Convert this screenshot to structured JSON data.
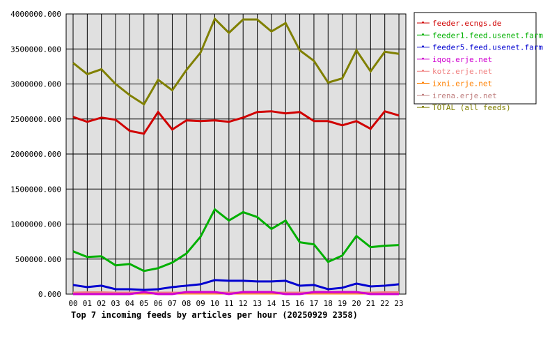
{
  "chart_data": {
    "type": "line",
    "title": "Top 7 incoming feeds by articles per hour (20250929 2358)",
    "categories": [
      "00",
      "01",
      "02",
      "03",
      "04",
      "05",
      "06",
      "07",
      "08",
      "09",
      "10",
      "11",
      "12",
      "13",
      "14",
      "15",
      "16",
      "17",
      "18",
      "19",
      "20",
      "21",
      "22",
      "23"
    ],
    "ylim": [
      0,
      4000000
    ],
    "yticks": [
      "0.000",
      "500000.000",
      "1000000.000",
      "1500000.000",
      "2000000.000",
      "2500000.000",
      "3000000.000",
      "3500000.000",
      "4000000.000"
    ],
    "grid": true,
    "legend_position": "right",
    "plot_background": "#e0e0e0",
    "series": [
      {
        "name": "feeder.ecngs.de",
        "color": "#d00000",
        "values": [
          2530000,
          2460000,
          2520000,
          2490000,
          2330000,
          2290000,
          2600000,
          2350000,
          2480000,
          2470000,
          2480000,
          2460000,
          2520000,
          2600000,
          2610000,
          2580000,
          2600000,
          2470000,
          2470000,
          2410000,
          2470000,
          2360000,
          2610000,
          2550000
        ]
      },
      {
        "name": "feeder1.feed.usenet.farm",
        "color": "#00b000",
        "values": [
          610000,
          530000,
          540000,
          410000,
          430000,
          330000,
          370000,
          450000,
          580000,
          820000,
          1210000,
          1050000,
          1170000,
          1100000,
          930000,
          1050000,
          740000,
          710000,
          460000,
          550000,
          830000,
          670000,
          690000,
          700000
        ]
      },
      {
        "name": "feeder5.feed.usenet.farm",
        "color": "#0000d0",
        "values": [
          130000,
          100000,
          120000,
          70000,
          70000,
          60000,
          70000,
          100000,
          120000,
          140000,
          200000,
          190000,
          190000,
          180000,
          180000,
          190000,
          120000,
          130000,
          70000,
          90000,
          150000,
          110000,
          120000,
          140000
        ]
      },
      {
        "name": "iqoq.erje.net",
        "color": "#d000d0",
        "values": [
          0,
          0,
          0,
          0,
          0,
          30000,
          0,
          0,
          30000,
          30000,
          30000,
          0,
          30000,
          30000,
          30000,
          0,
          0,
          30000,
          30000,
          30000,
          30000,
          0,
          0,
          0
        ]
      },
      {
        "name": "kotz.erje.net",
        "color": "#f08080",
        "values": [
          20000,
          25000,
          25000,
          20000,
          20000,
          20000,
          20000,
          20000,
          20000,
          20000,
          20000,
          20000,
          20000,
          20000,
          20000,
          20000,
          20000,
          20000,
          20000,
          20000,
          20000,
          20000,
          25000,
          25000
        ]
      },
      {
        "name": "ixni.erje.net",
        "color": "#ff8000",
        "values": [
          10000,
          10000,
          10000,
          10000,
          10000,
          10000,
          10000,
          10000,
          10000,
          10000,
          10000,
          10000,
          10000,
          10000,
          10000,
          10000,
          10000,
          10000,
          10000,
          10000,
          10000,
          10000,
          10000,
          10000
        ]
      },
      {
        "name": "irena.erje.net",
        "color": "#c08080",
        "values": [
          15000,
          15000,
          15000,
          15000,
          15000,
          15000,
          15000,
          15000,
          15000,
          15000,
          15000,
          15000,
          15000,
          15000,
          15000,
          15000,
          15000,
          15000,
          15000,
          15000,
          15000,
          15000,
          15000,
          15000
        ]
      },
      {
        "name": "TOTAL (all feeds)",
        "color": "#808000",
        "values": [
          3300000,
          3140000,
          3210000,
          3000000,
          2840000,
          2710000,
          3060000,
          2910000,
          3200000,
          3450000,
          3930000,
          3730000,
          3920000,
          3920000,
          3750000,
          3870000,
          3480000,
          3330000,
          3020000,
          3080000,
          3480000,
          3180000,
          3460000,
          3430000
        ]
      }
    ]
  }
}
